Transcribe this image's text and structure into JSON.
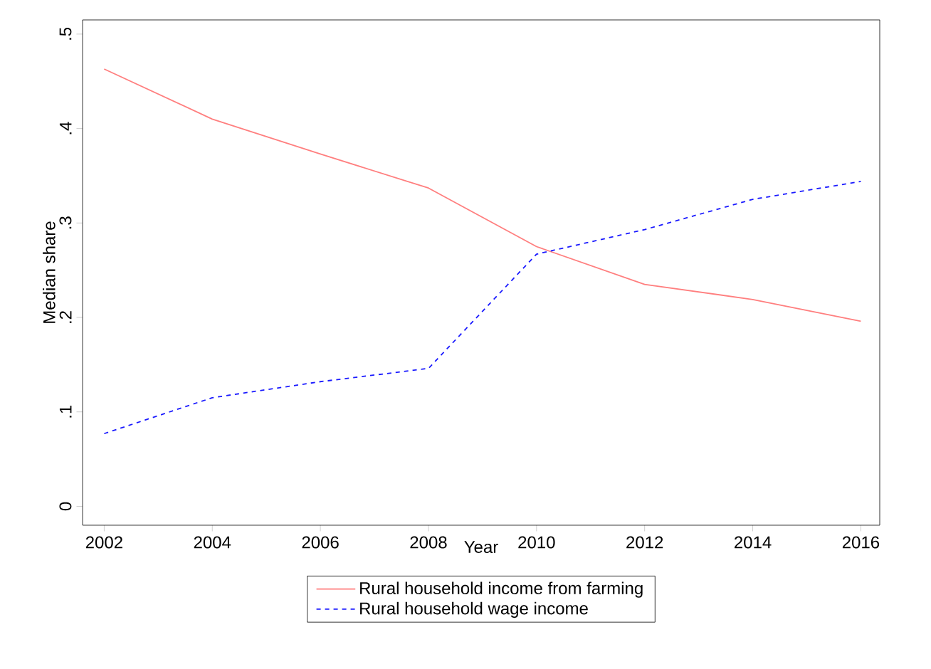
{
  "chart_data": {
    "type": "line",
    "xlabel": "Year",
    "ylabel": "Median share",
    "x": [
      2002,
      2004,
      2006,
      2008,
      2010,
      2012,
      2014,
      2016
    ],
    "series": [
      {
        "name": "Rural household income from farming",
        "color": "#ff7f7f",
        "line_style": "solid",
        "values": [
          0.463,
          0.41,
          0.373,
          0.337,
          0.275,
          0.235,
          0.219,
          0.196
        ]
      },
      {
        "name": "Rural household wage income",
        "color": "#1a1aff",
        "line_style": "dashed",
        "values": [
          0.077,
          0.115,
          0.132,
          0.146,
          0.267,
          0.293,
          0.325,
          0.344
        ]
      }
    ],
    "xlim": [
      2001.6,
      2016.35
    ],
    "ylim": [
      -0.02,
      0.515
    ],
    "xticks": [
      2002,
      2004,
      2006,
      2008,
      2010,
      2012,
      2014,
      2016
    ],
    "yticks": [
      0,
      {
        "value": 0.1,
        "label": ".1"
      },
      {
        "value": 0.2,
        "label": ".2"
      },
      {
        "value": 0.3,
        "label": ".3"
      },
      {
        "value": 0.4,
        "label": ".4"
      },
      {
        "value": 0.5,
        "label": ".5"
      }
    ],
    "grid": false,
    "legend": "bottom",
    "marker": "none"
  }
}
